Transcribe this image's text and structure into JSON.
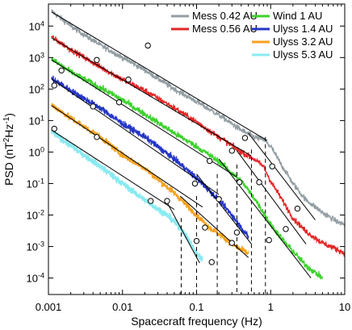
{
  "chart_data": {
    "type": "line",
    "xlabel": "Spacecraft frequency (Hz)",
    "ylabel": {
      "base": "PSD (nT",
      "sup1": "2",
      "mid": "Hz",
      "sup2": "-1",
      "end": ")"
    },
    "x_scale": "log",
    "y_scale": "log",
    "xlim": [
      0.001,
      10
    ],
    "ylim": [
      3e-05,
      50000
    ],
    "x_ticks": [
      {
        "value": 0.001,
        "label": "0.001"
      },
      {
        "value": 0.01,
        "label": "0.01"
      },
      {
        "value": 0.1,
        "label": "0.1"
      },
      {
        "value": 1,
        "label": "1"
      },
      {
        "value": 10,
        "label": "10"
      }
    ],
    "y_ticks": [
      {
        "value": 0.0001,
        "base": "10",
        "exp": "-4"
      },
      {
        "value": 0.001,
        "base": "10",
        "exp": "-3"
      },
      {
        "value": 0.01,
        "base": "10",
        "exp": "-2"
      },
      {
        "value": 0.1,
        "base": "10",
        "exp": "-1"
      },
      {
        "value": 1,
        "base": "10",
        "exp": "0"
      },
      {
        "value": 10,
        "base": "10",
        "exp": "1"
      },
      {
        "value": 100,
        "base": "10",
        "exp": "2"
      },
      {
        "value": 1000,
        "base": "10",
        "exp": "3"
      },
      {
        "value": 10000,
        "base": "10",
        "exp": "4"
      }
    ],
    "grid": false,
    "legend_columns": [
      [
        "Mess 0.42 AU",
        "Mess 0.56 AU"
      ],
      [
        "Wind  1 AU",
        "Ulyss 1.4 AU",
        "Ulyss 3.2 AU",
        "Ulyss 5.3 AU"
      ]
    ],
    "legend_placement": "top-right",
    "series": [
      {
        "name": "Mess 0.42 AU",
        "color": "#939ea3",
        "x": [
          0.0011,
          0.002,
          0.005,
          0.01,
          0.02,
          0.05,
          0.1,
          0.2,
          0.4,
          0.6,
          0.8,
          1.0,
          1.5,
          2,
          3,
          5,
          8,
          10
        ],
        "y": [
          30000,
          10000,
          2500,
          1000,
          400,
          100,
          40,
          15,
          5,
          3.0,
          2.5,
          1.5,
          0.3,
          0.1,
          0.03,
          0.012,
          0.006,
          0.005
        ],
        "noise": 0.09
      },
      {
        "name": "Mess 0.56 AU",
        "color": "#e32626",
        "x": [
          0.0011,
          0.002,
          0.005,
          0.01,
          0.02,
          0.05,
          0.1,
          0.2,
          0.4,
          0.6,
          0.8,
          1.0,
          1.5,
          2,
          3,
          5,
          8,
          10
        ],
        "y": [
          4500,
          1800,
          500,
          200,
          90,
          25,
          9,
          3,
          1.0,
          0.6,
          0.35,
          0.12,
          0.025,
          0.008,
          0.003,
          0.0013,
          0.0008,
          0.0006
        ],
        "noise": 0.09
      },
      {
        "name": "Wind  1 AU",
        "color": "#3cd22c",
        "x": [
          0.0011,
          0.002,
          0.005,
          0.01,
          0.02,
          0.05,
          0.1,
          0.2,
          0.4,
          0.6,
          0.8,
          1.0,
          1.5,
          2,
          3,
          5
        ],
        "y": [
          900,
          350,
          110,
          45,
          16,
          4,
          1.5,
          0.5,
          0.12,
          0.035,
          0.012,
          0.005,
          0.0015,
          0.0007,
          0.00025,
          0.0001
        ],
        "noise": 0.1
      },
      {
        "name": "Ulyss 1.4 AU",
        "color": "#2535c6",
        "x": [
          0.0011,
          0.002,
          0.005,
          0.01,
          0.02,
          0.05,
          0.1,
          0.2,
          0.3,
          0.4,
          0.5
        ],
        "y": [
          220,
          90,
          25,
          8,
          3,
          0.6,
          0.15,
          0.03,
          0.01,
          0.004,
          0.002
        ],
        "noise": 0.1
      },
      {
        "name": "Ulyss 3.2 AU",
        "color": "#f5a21d",
        "x": [
          0.0011,
          0.002,
          0.005,
          0.01,
          0.02,
          0.05,
          0.1,
          0.15,
          0.2,
          0.3,
          0.4,
          0.5
        ],
        "y": [
          32,
          12,
          3,
          0.8,
          0.3,
          0.05,
          0.01,
          0.004,
          0.0025,
          0.0012,
          0.0008,
          0.0006
        ],
        "noise": 0.1
      },
      {
        "name": "Ulyss 5.3 AU",
        "color": "#89eaf0",
        "x": [
          0.0011,
          0.002,
          0.005,
          0.01,
          0.02,
          0.04,
          0.06,
          0.08,
          0.1,
          0.12
        ],
        "y": [
          4.5,
          1.6,
          0.35,
          0.1,
          0.03,
          0.01,
          0.004,
          0.0015,
          0.0006,
          0.0004
        ],
        "noise": 0.11
      }
    ],
    "fit_lines": [
      {
        "x": [
          0.0011,
          0.9
        ],
        "y": [
          28000,
          2.3
        ]
      },
      {
        "x": [
          0.5,
          4
        ],
        "y": [
          4,
          0.007
        ]
      },
      {
        "x": [
          0.0011,
          0.55
        ],
        "y": [
          4200,
          0.75
        ]
      },
      {
        "x": [
          0.35,
          3
        ],
        "y": [
          1.1,
          0.0012
        ]
      },
      {
        "x": [
          0.0011,
          0.35
        ],
        "y": [
          850,
          0.16
        ]
      },
      {
        "x": [
          0.2,
          3.5
        ],
        "y": [
          0.6,
          0.0001
        ]
      },
      {
        "x": [
          0.0011,
          0.2
        ],
        "y": [
          210,
          0.045
        ]
      },
      {
        "x": [
          0.1,
          0.55
        ],
        "y": [
          0.2,
          0.0012
        ]
      },
      {
        "x": [
          0.0011,
          0.12
        ],
        "y": [
          30,
          0.018
        ]
      },
      {
        "x": [
          0.06,
          0.5
        ],
        "y": [
          0.04,
          0.00045
        ]
      },
      {
        "x": [
          0.0011,
          0.05
        ],
        "y": [
          5,
          0.015
        ]
      },
      {
        "x": [
          0.04,
          0.11
        ],
        "y": [
          0.025,
          0.0003
        ]
      }
    ],
    "markers": [
      {
        "x": 0.022,
        "y": 2400
      },
      {
        "x": 0.45,
        "y": 2.8
      },
      {
        "x": 1.05,
        "y": 0.35
      },
      {
        "x": 2.3,
        "y": 0.016
      },
      {
        "x": 0.0045,
        "y": 840
      },
      {
        "x": 0.012,
        "y": 200
      },
      {
        "x": 0.3,
        "y": 1.1
      },
      {
        "x": 0.7,
        "y": 0.11
      },
      {
        "x": 1.6,
        "y": 0.0036
      },
      {
        "x": 0.0015,
        "y": 390
      },
      {
        "x": 0.009,
        "y": 38
      },
      {
        "x": 0.15,
        "y": 0.52
      },
      {
        "x": 0.38,
        "y": 0.11
      },
      {
        "x": 0.95,
        "y": 0.0016
      },
      {
        "x": 0.0012,
        "y": 130
      },
      {
        "x": 0.004,
        "y": 28
      },
      {
        "x": 0.095,
        "y": 0.1
      },
      {
        "x": 0.2,
        "y": 0.032
      },
      {
        "x": 0.35,
        "y": 0.0028
      },
      {
        "x": 0.0045,
        "y": 3
      },
      {
        "x": 0.04,
        "y": 0.028
      },
      {
        "x": 0.13,
        "y": 0.004
      },
      {
        "x": 0.3,
        "y": 0.0013
      },
      {
        "x": 0.0012,
        "y": 5.5
      },
      {
        "x": 0.024,
        "y": 0.028
      },
      {
        "x": 0.1,
        "y": 0.0015
      },
      {
        "x": 0.16,
        "y": 0.00032
      }
    ],
    "breakpoints": [
      {
        "x": 0.062,
        "y_top": 0.008
      },
      {
        "x": 0.1,
        "y_top": 0.04
      },
      {
        "x": 0.19,
        "y_top": 0.2
      },
      {
        "x": 0.35,
        "y_top": 0.4
      },
      {
        "x": 0.55,
        "y_top": 1.2
      },
      {
        "x": 0.85,
        "y_top": 3.0
      }
    ]
  }
}
